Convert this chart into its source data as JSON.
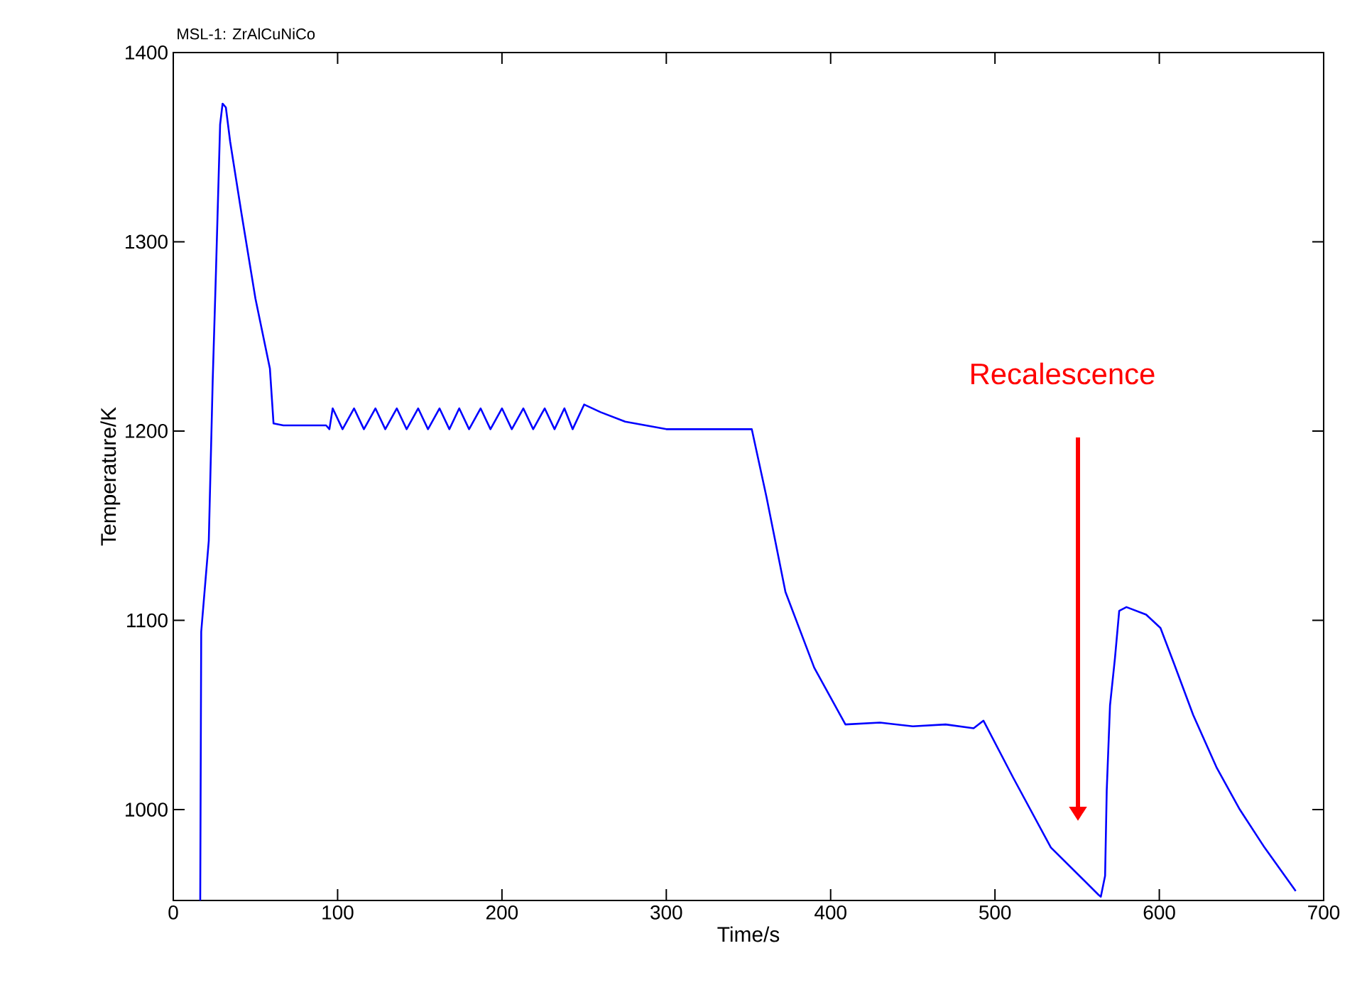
{
  "chart_data": {
    "type": "line",
    "title": "MSL-1: ZrAlCuNiCo",
    "xlabel": "Time/s",
    "ylabel": "Temperature/K",
    "xlim": [
      0,
      700
    ],
    "ylim": [
      952,
      1400
    ],
    "xticks": [
      0,
      100,
      200,
      300,
      400,
      500,
      600,
      700
    ],
    "yticks": [
      1000,
      1100,
      1200,
      1300,
      1400
    ],
    "grid": false,
    "marker": "none",
    "line_style": "solid",
    "annotations": [
      "Recalescence"
    ],
    "series": [
      {
        "color": "#0000ff",
        "x": [
          16.4,
          17,
          21.6,
          24,
          26,
          28.5,
          30,
          32,
          34.6,
          41.5,
          50,
          58.8,
          61,
          67,
          93,
          95,
          97,
          103,
          110,
          116,
          123,
          129,
          136,
          142,
          149,
          155,
          162,
          168,
          174,
          180,
          187,
          193,
          200,
          206,
          213,
          219,
          226,
          232,
          238,
          243,
          250,
          260,
          275,
          300,
          352,
          361,
          372.5,
          390,
          409,
          430,
          450,
          470,
          487,
          493,
          511,
          534,
          563,
          564.4,
          567,
          568,
          570,
          573,
          575.6,
          580,
          592,
          600.7,
          609,
          620.6,
          635,
          649,
          664,
          683
        ],
        "values": [
          952,
          1094,
          1142,
          1227,
          1285,
          1362,
          1373,
          1371,
          1353,
          1315,
          1270,
          1233,
          1204,
          1203,
          1203,
          1201,
          1212,
          1201,
          1212,
          1201,
          1212,
          1201,
          1212,
          1201,
          1212,
          1201,
          1212,
          1201,
          1212,
          1201,
          1212,
          1201,
          1212,
          1201,
          1212,
          1201,
          1212,
          1201,
          1212,
          1201,
          1214,
          1210,
          1205,
          1201,
          1201,
          1165,
          1115,
          1075,
          1045,
          1046,
          1044,
          1045,
          1043,
          1047,
          1017,
          980,
          955,
          954,
          965,
          1010,
          1055,
          1080,
          1105,
          1107,
          1103,
          1096,
          1077,
          1050,
          1022,
          1000,
          980,
          957
        ]
      }
    ]
  }
}
